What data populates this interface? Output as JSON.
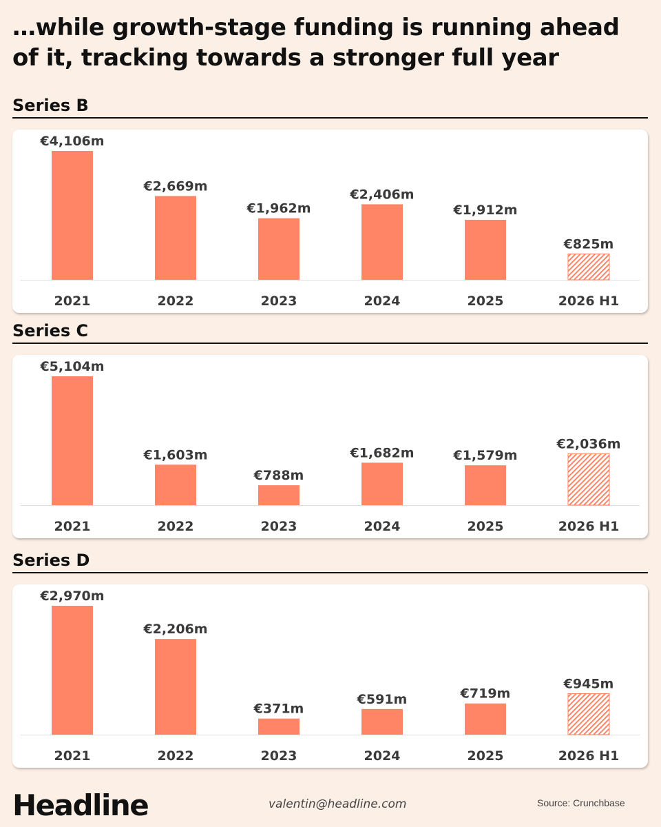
{
  "title": "…while growth-stage funding is running ahead of it, tracking towards a stronger full year",
  "colors": {
    "bar": "#ff8566",
    "background": "#fcefe6",
    "card": "#ffffff"
  },
  "chart_data": [
    {
      "type": "bar",
      "title": "Series B",
      "categories": [
        "2021",
        "2022",
        "2023",
        "2024",
        "2025",
        "2026 H1"
      ],
      "values": [
        4106,
        2669,
        1962,
        2406,
        1912,
        825
      ],
      "labels": [
        "€4,106m",
        "€2,669m",
        "€1,962m",
        "€2,406m",
        "€1,912m",
        "€825m"
      ],
      "partial": [
        false,
        false,
        false,
        false,
        false,
        true
      ],
      "unit": "€m",
      "ylim": [
        0,
        4106
      ]
    },
    {
      "type": "bar",
      "title": "Series C",
      "categories": [
        "2021",
        "2022",
        "2023",
        "2024",
        "2025",
        "2026 H1"
      ],
      "values": [
        5104,
        1603,
        788,
        1682,
        1579,
        2036
      ],
      "labels": [
        "€5,104m",
        "€1,603m",
        "€788m",
        "€1,682m",
        "€1,579m",
        "€2,036m"
      ],
      "partial": [
        false,
        false,
        false,
        false,
        false,
        true
      ],
      "unit": "€m",
      "ylim": [
        0,
        5104
      ]
    },
    {
      "type": "bar",
      "title": "Series D",
      "categories": [
        "2021",
        "2022",
        "2023",
        "2024",
        "2025",
        "2026 H1"
      ],
      "values": [
        2970,
        2206,
        371,
        591,
        719,
        945
      ],
      "labels": [
        "€2,970m",
        "€2,206m",
        "€371m",
        "€591m",
        "€719m",
        "€945m"
      ],
      "partial": [
        false,
        false,
        false,
        false,
        false,
        true
      ],
      "unit": "€m",
      "ylim": [
        0,
        2970
      ]
    }
  ],
  "footer": {
    "logo": "Headline",
    "email": "valentin@headline.com",
    "source": "Source: Crunchbase"
  }
}
